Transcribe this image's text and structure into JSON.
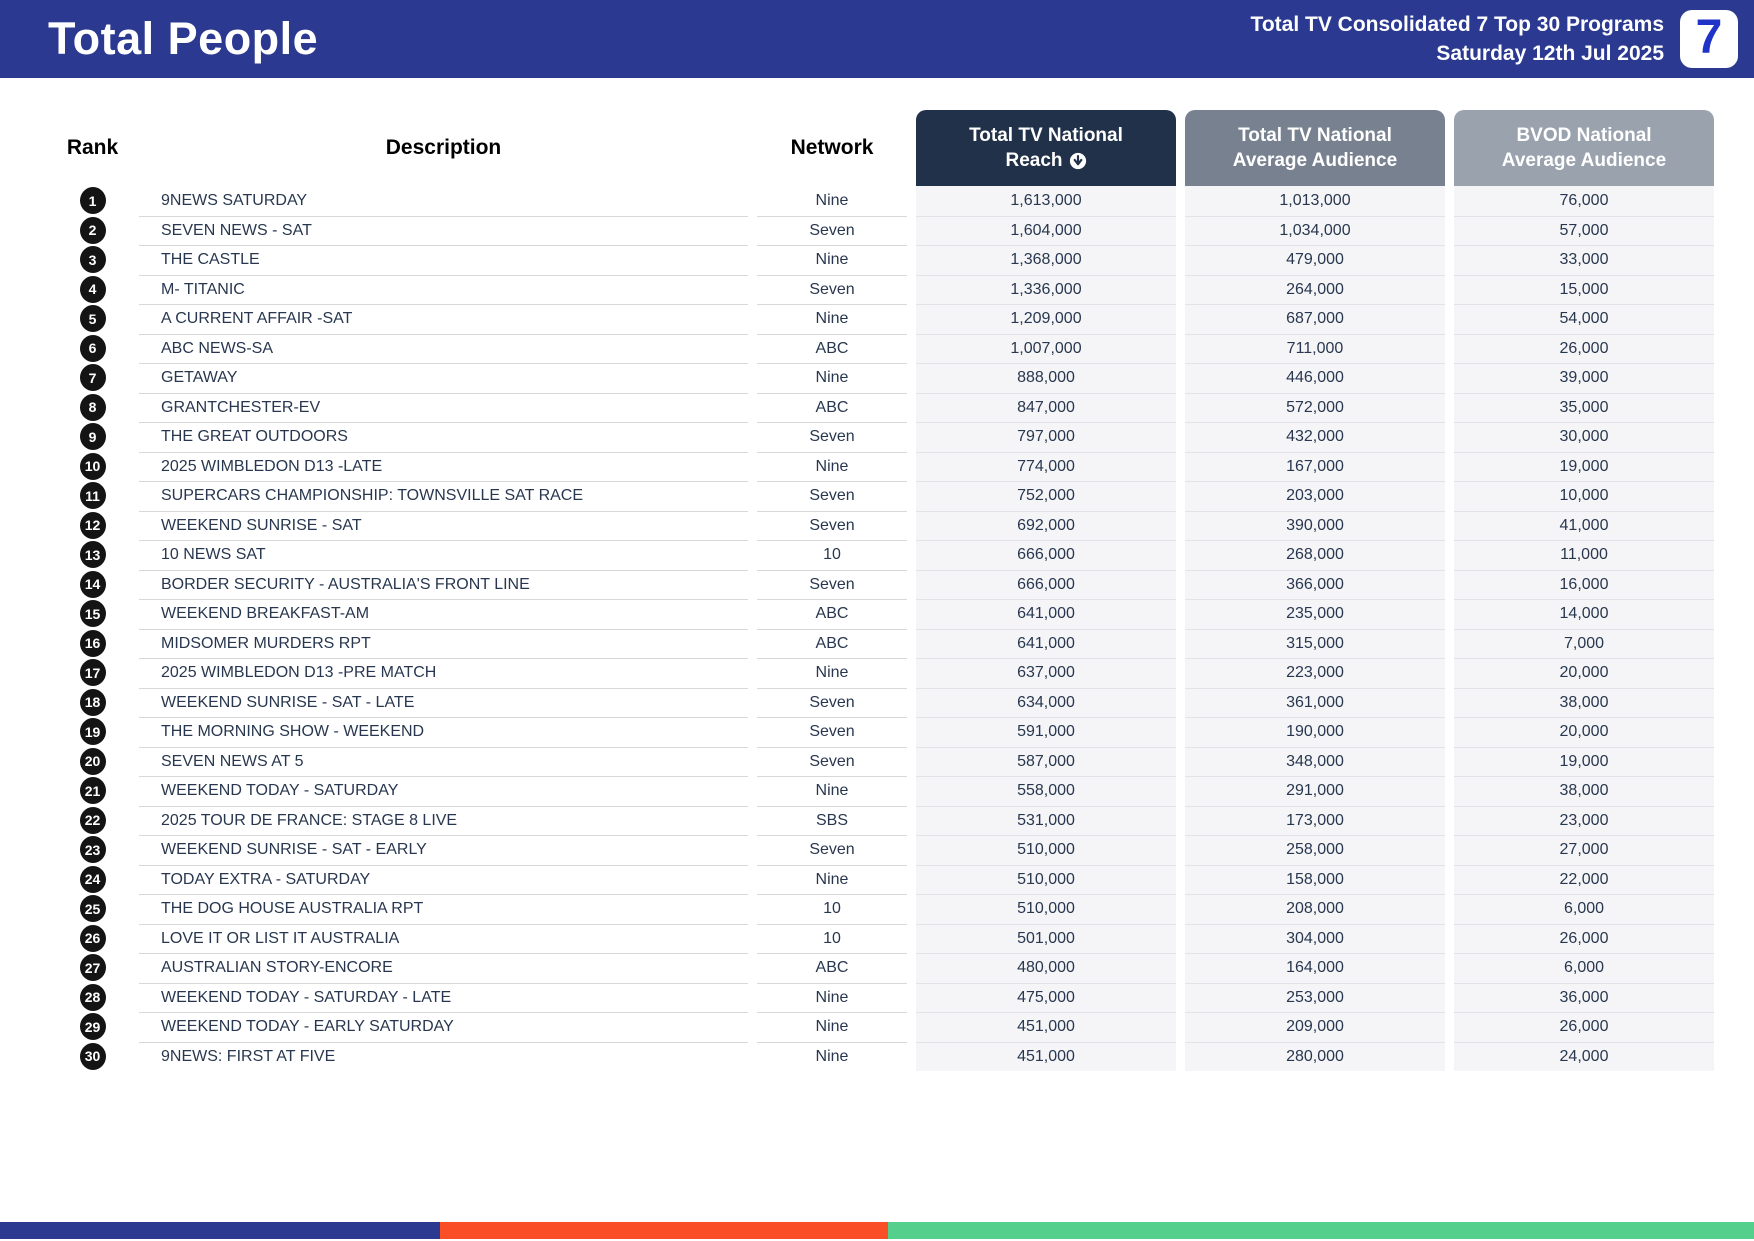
{
  "header": {
    "title": "Total People",
    "report_line1": "Total TV Consolidated 7 Top 30 Programs",
    "report_line2": "Saturday 12th Jul 2025",
    "logo_text": "7",
    "bar_color": "#2B3991",
    "logo_color": "#2033C9"
  },
  "table": {
    "columns": {
      "rank": "Rank",
      "description": "Description",
      "network": "Network",
      "reach_line1": "Total TV National",
      "reach_line2": "Reach",
      "avg_line1": "Total TV National",
      "avg_line2": "Average Audience",
      "bvod_line1": "BVOD National",
      "bvod_line2": "Average Audience"
    },
    "header_colors": {
      "reach": "#22314A",
      "avg": "#78818F",
      "bvod": "#9AA2AE"
    },
    "sort_icon": "sort-descending",
    "rows": [
      {
        "rank": "1",
        "description": "9NEWS SATURDAY",
        "network": "Nine",
        "reach": "1,613,000",
        "avg": "1,013,000",
        "bvod": "76,000"
      },
      {
        "rank": "2",
        "description": "SEVEN NEWS - SAT",
        "network": "Seven",
        "reach": "1,604,000",
        "avg": "1,034,000",
        "bvod": "57,000"
      },
      {
        "rank": "3",
        "description": "THE CASTLE",
        "network": "Nine",
        "reach": "1,368,000",
        "avg": "479,000",
        "bvod": "33,000"
      },
      {
        "rank": "4",
        "description": "M- TITANIC",
        "network": "Seven",
        "reach": "1,336,000",
        "avg": "264,000",
        "bvod": "15,000"
      },
      {
        "rank": "5",
        "description": "A CURRENT AFFAIR -SAT",
        "network": "Nine",
        "reach": "1,209,000",
        "avg": "687,000",
        "bvod": "54,000"
      },
      {
        "rank": "6",
        "description": "ABC NEWS-SA",
        "network": "ABC",
        "reach": "1,007,000",
        "avg": "711,000",
        "bvod": "26,000"
      },
      {
        "rank": "7",
        "description": "GETAWAY",
        "network": "Nine",
        "reach": "888,000",
        "avg": "446,000",
        "bvod": "39,000"
      },
      {
        "rank": "8",
        "description": "GRANTCHESTER-EV",
        "network": "ABC",
        "reach": "847,000",
        "avg": "572,000",
        "bvod": "35,000"
      },
      {
        "rank": "9",
        "description": "THE GREAT OUTDOORS",
        "network": "Seven",
        "reach": "797,000",
        "avg": "432,000",
        "bvod": "30,000"
      },
      {
        "rank": "10",
        "description": "2025 WIMBLEDON D13 -LATE",
        "network": "Nine",
        "reach": "774,000",
        "avg": "167,000",
        "bvod": "19,000"
      },
      {
        "rank": "11",
        "description": "SUPERCARS CHAMPIONSHIP: TOWNSVILLE SAT RACE",
        "network": "Seven",
        "reach": "752,000",
        "avg": "203,000",
        "bvod": "10,000"
      },
      {
        "rank": "12",
        "description": "WEEKEND SUNRISE - SAT",
        "network": "Seven",
        "reach": "692,000",
        "avg": "390,000",
        "bvod": "41,000"
      },
      {
        "rank": "13",
        "description": "10 NEWS SAT",
        "network": "10",
        "reach": "666,000",
        "avg": "268,000",
        "bvod": "11,000"
      },
      {
        "rank": "14",
        "description": "BORDER SECURITY - AUSTRALIA'S FRONT LINE",
        "network": "Seven",
        "reach": "666,000",
        "avg": "366,000",
        "bvod": "16,000"
      },
      {
        "rank": "15",
        "description": "WEEKEND BREAKFAST-AM",
        "network": "ABC",
        "reach": "641,000",
        "avg": "235,000",
        "bvod": "14,000"
      },
      {
        "rank": "16",
        "description": "MIDSOMER MURDERS RPT",
        "network": "ABC",
        "reach": "641,000",
        "avg": "315,000",
        "bvod": "7,000"
      },
      {
        "rank": "17",
        "description": "2025 WIMBLEDON D13 -PRE MATCH",
        "network": "Nine",
        "reach": "637,000",
        "avg": "223,000",
        "bvod": "20,000"
      },
      {
        "rank": "18",
        "description": "WEEKEND SUNRISE - SAT - LATE",
        "network": "Seven",
        "reach": "634,000",
        "avg": "361,000",
        "bvod": "38,000"
      },
      {
        "rank": "19",
        "description": "THE MORNING SHOW - WEEKEND",
        "network": "Seven",
        "reach": "591,000",
        "avg": "190,000",
        "bvod": "20,000"
      },
      {
        "rank": "20",
        "description": "SEVEN NEWS AT 5",
        "network": "Seven",
        "reach": "587,000",
        "avg": "348,000",
        "bvod": "19,000"
      },
      {
        "rank": "21",
        "description": "WEEKEND TODAY - SATURDAY",
        "network": "Nine",
        "reach": "558,000",
        "avg": "291,000",
        "bvod": "38,000"
      },
      {
        "rank": "22",
        "description": "2025 TOUR DE FRANCE: STAGE 8 LIVE",
        "network": "SBS",
        "reach": "531,000",
        "avg": "173,000",
        "bvod": "23,000"
      },
      {
        "rank": "23",
        "description": "WEEKEND SUNRISE - SAT - EARLY",
        "network": "Seven",
        "reach": "510,000",
        "avg": "258,000",
        "bvod": "27,000"
      },
      {
        "rank": "24",
        "description": "TODAY EXTRA - SATURDAY",
        "network": "Nine",
        "reach": "510,000",
        "avg": "158,000",
        "bvod": "22,000"
      },
      {
        "rank": "25",
        "description": "THE DOG HOUSE AUSTRALIA RPT",
        "network": "10",
        "reach": "510,000",
        "avg": "208,000",
        "bvod": "6,000"
      },
      {
        "rank": "26",
        "description": "LOVE IT OR LIST IT AUSTRALIA",
        "network": "10",
        "reach": "501,000",
        "avg": "304,000",
        "bvod": "26,000"
      },
      {
        "rank": "27",
        "description": "AUSTRALIAN STORY-ENCORE",
        "network": "ABC",
        "reach": "480,000",
        "avg": "164,000",
        "bvod": "6,000"
      },
      {
        "rank": "28",
        "description": "WEEKEND TODAY - SATURDAY - LATE",
        "network": "Nine",
        "reach": "475,000",
        "avg": "253,000",
        "bvod": "36,000"
      },
      {
        "rank": "29",
        "description": "WEEKEND TODAY - EARLY SATURDAY",
        "network": "Nine",
        "reach": "451,000",
        "avg": "209,000",
        "bvod": "26,000"
      },
      {
        "rank": "30",
        "description": "9NEWS: FIRST AT FIVE",
        "network": "Nine",
        "reach": "451,000",
        "avg": "280,000",
        "bvod": "24,000"
      }
    ]
  },
  "footer": {
    "segments": [
      {
        "name": "blue",
        "color": "#2B3991",
        "width_pct": 25.1
      },
      {
        "name": "orange",
        "color": "#FA4F26",
        "width_pct": 25.5
      },
      {
        "name": "green",
        "color": "#55D08C",
        "width_pct": 49.4
      }
    ]
  }
}
